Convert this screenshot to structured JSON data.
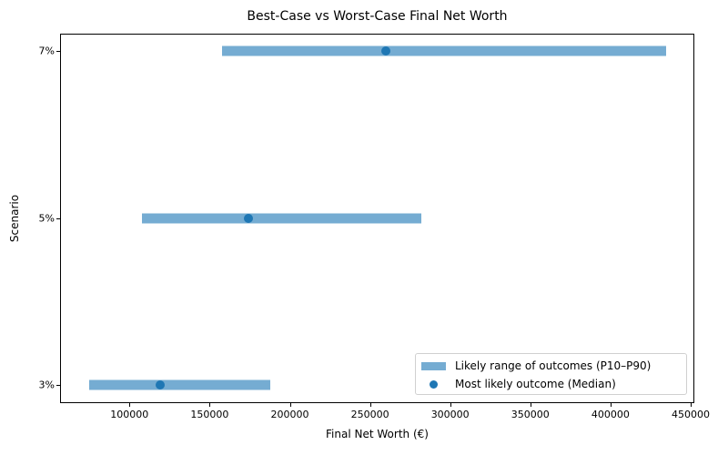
{
  "chart_data": {
    "type": "range_dot",
    "title": "Best-Case vs Worst-Case Final Net Worth",
    "xlabel": "Final Net Worth (€)",
    "ylabel": "Scenario",
    "categories": [
      "3%",
      "5%",
      "7%"
    ],
    "series": [
      {
        "name": "Likely range of outcomes (P10–P90)",
        "kind": "range",
        "low": [
          75000,
          107500,
          157500
        ],
        "high": [
          188000,
          282000,
          434500
        ]
      },
      {
        "name": "Most likely outcome (Median)",
        "kind": "scatter",
        "values": [
          119000,
          174000,
          260000
        ]
      }
    ],
    "xlim": [
      52000,
      452000
    ],
    "xticks": [
      100000,
      150000,
      200000,
      250000,
      300000,
      350000,
      400000,
      450000
    ],
    "grid": false,
    "legend_position": "lower right",
    "colors": {
      "range": "#75acd2",
      "median": "#1f77b4"
    }
  },
  "labels": {
    "title": "Best-Case vs Worst-Case Final Net Worth",
    "xlabel": "Final Net Worth (€)",
    "ylabel": "Scenario",
    "xticks": [
      "100000",
      "150000",
      "200000",
      "250000",
      "300000",
      "350000",
      "400000",
      "450000"
    ],
    "yticks": [
      "3%",
      "5%",
      "7%"
    ],
    "legend": [
      "Likely range of outcomes (P10–P90)",
      "Most likely outcome (Median)"
    ]
  }
}
